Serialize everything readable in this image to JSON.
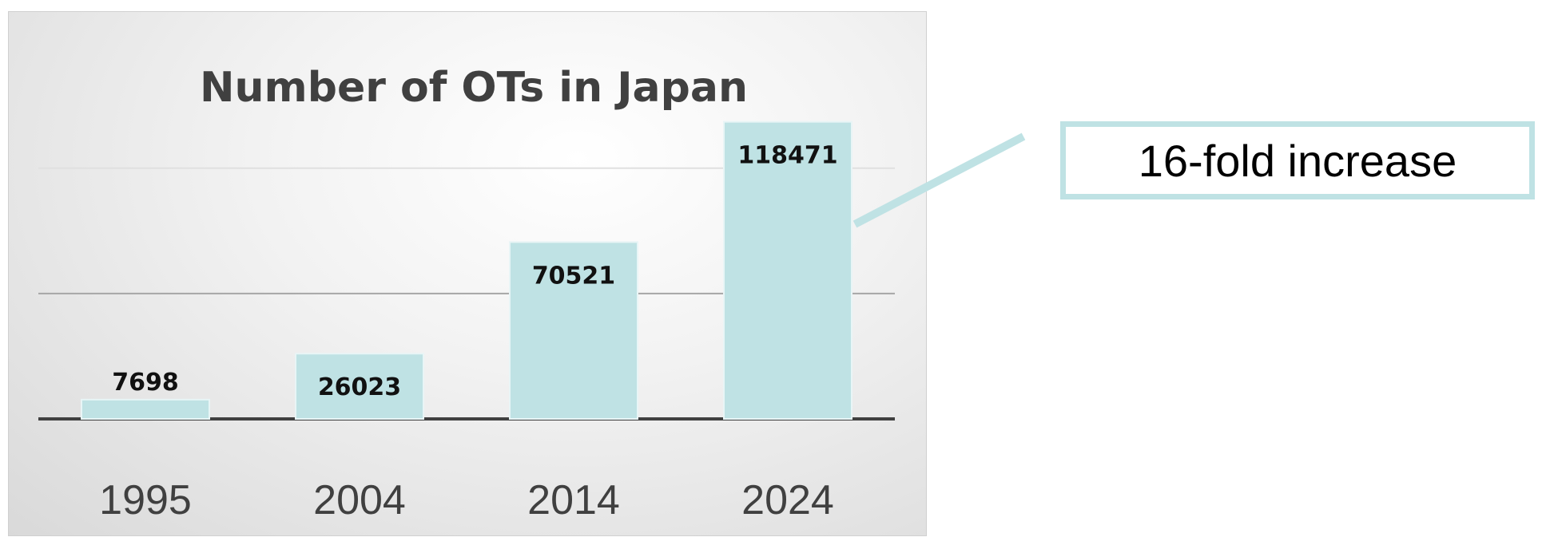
{
  "chart_data": {
    "type": "bar",
    "title": "Number of OTs in Japan",
    "categories": [
      "1995",
      "2004",
      "2014",
      "2024"
    ],
    "values": [
      7698,
      26023,
      70521,
      118471
    ],
    "data_labels": [
      "7698",
      "26023",
      "70521",
      "118471"
    ],
    "xlabel": "",
    "ylabel": "",
    "ylim": [
      0,
      140000
    ],
    "grid": true,
    "legend": "none",
    "bar_color": "#bfe2e4",
    "bar_edge_color": "#e8f5f6"
  },
  "callout": {
    "text": "16-fold increase",
    "border_color": "#bfe2e4"
  }
}
